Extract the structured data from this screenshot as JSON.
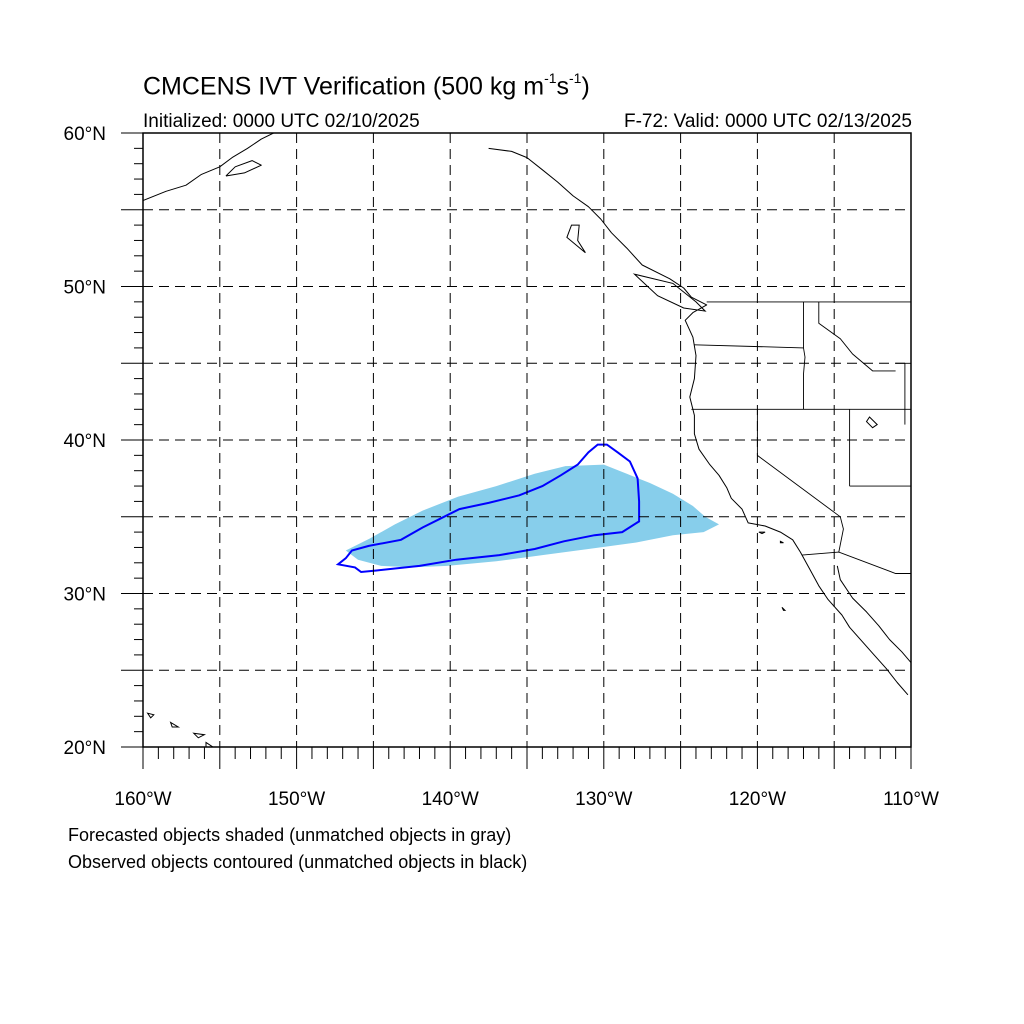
{
  "title": {
    "main": "CMCENS IVT Verification (500 kg m",
    "sup1": "-1",
    "mid": "s",
    "sup2": "-1",
    "close": ")"
  },
  "subtitle_left": "Initialized: 0000 UTC 02/10/2025",
  "subtitle_right": "F-72: Valid: 0000 UTC 02/13/2025",
  "notes": [
    "Forecasted objects shaded (unmatched objects in gray)",
    "Observed objects contoured (unmatched objects in black)"
  ],
  "colors": {
    "forecast_fill": "#87ceeb",
    "observed_contour": "#0000ff",
    "grid": "#000000",
    "coast": "#000000"
  },
  "map": {
    "lon_range": [
      -160,
      -110
    ],
    "lat_range": [
      20,
      60
    ],
    "grid_step_deg": 5,
    "lat_labels": [
      {
        "lat": 60,
        "text": "60°N"
      },
      {
        "lat": 50,
        "text": "50°N"
      },
      {
        "lat": 40,
        "text": "40°N"
      },
      {
        "lat": 30,
        "text": "30°N"
      },
      {
        "lat": 20,
        "text": "20°N"
      }
    ],
    "lon_labels": [
      {
        "lon": -160,
        "text": "160°W"
      },
      {
        "lon": -150,
        "text": "150°W"
      },
      {
        "lon": -140,
        "text": "140°W"
      },
      {
        "lon": -130,
        "text": "130°W"
      },
      {
        "lon": -120,
        "text": "120°W"
      },
      {
        "lon": -110,
        "text": "110°W"
      }
    ],
    "forecast_object": [
      [
        -146.8,
        32.8
      ],
      [
        -145.2,
        33.6
      ],
      [
        -143.6,
        34.5
      ],
      [
        -141.8,
        35.4
      ],
      [
        -139.5,
        36.3
      ],
      [
        -137.0,
        37.0
      ],
      [
        -134.5,
        37.8
      ],
      [
        -132.5,
        38.3
      ],
      [
        -130.0,
        38.4
      ],
      [
        -128.5,
        37.8
      ],
      [
        -127.0,
        37.2
      ],
      [
        -125.5,
        36.5
      ],
      [
        -124.2,
        35.7
      ],
      [
        -123.4,
        35.0
      ],
      [
        -122.5,
        34.5
      ],
      [
        -123.5,
        34.0
      ],
      [
        -125.5,
        33.8
      ],
      [
        -128.0,
        33.3
      ],
      [
        -131.0,
        32.9
      ],
      [
        -134.0,
        32.5
      ],
      [
        -137.0,
        32.1
      ],
      [
        -140.2,
        31.8
      ],
      [
        -142.5,
        31.7
      ],
      [
        -144.5,
        31.8
      ],
      [
        -146.0,
        32.2
      ]
    ],
    "observed_object": [
      [
        -147.3,
        31.9
      ],
      [
        -146.8,
        32.3
      ],
      [
        -146.4,
        32.8
      ],
      [
        -145.3,
        33.1
      ],
      [
        -143.2,
        33.5
      ],
      [
        -141.8,
        34.3
      ],
      [
        -140.6,
        34.9
      ],
      [
        -139.4,
        35.5
      ],
      [
        -137.5,
        35.9
      ],
      [
        -135.5,
        36.4
      ],
      [
        -134.0,
        37.0
      ],
      [
        -132.8,
        37.7
      ],
      [
        -131.7,
        38.4
      ],
      [
        -131.0,
        39.2
      ],
      [
        -130.4,
        39.7
      ],
      [
        -129.8,
        39.7
      ],
      [
        -129.1,
        39.2
      ],
      [
        -128.3,
        38.6
      ],
      [
        -127.8,
        37.5
      ],
      [
        -127.7,
        36.0
      ],
      [
        -127.7,
        34.7
      ],
      [
        -128.8,
        34.0
      ],
      [
        -130.6,
        33.8
      ],
      [
        -132.6,
        33.4
      ],
      [
        -134.5,
        32.9
      ],
      [
        -136.8,
        32.5
      ],
      [
        -139.6,
        32.2
      ],
      [
        -142.0,
        31.8
      ],
      [
        -144.8,
        31.5
      ],
      [
        -145.8,
        31.4
      ],
      [
        -146.2,
        31.7
      ]
    ],
    "coastline": [
      [
        -137.5,
        59.0
      ],
      [
        -136.0,
        58.8
      ],
      [
        -135.0,
        58.4
      ],
      [
        -134.0,
        57.6
      ],
      [
        -133.0,
        56.8
      ],
      [
        -132.0,
        55.9
      ],
      [
        -131.0,
        55.2
      ],
      [
        -130.2,
        54.4
      ],
      [
        -129.5,
        53.5
      ],
      [
        -128.5,
        52.5
      ],
      [
        -127.5,
        51.4
      ],
      [
        -125.7,
        50.5
      ],
      [
        -124.8,
        49.9
      ],
      [
        -124.3,
        49.3
      ],
      [
        -123.3,
        48.8
      ],
      [
        -124.2,
        48.3
      ],
      [
        -124.7,
        47.8
      ],
      [
        -124.2,
        46.7
      ],
      [
        -124.0,
        45.5
      ],
      [
        -124.1,
        44.0
      ],
      [
        -124.4,
        42.8
      ],
      [
        -124.1,
        41.6
      ],
      [
        -124.1,
        40.4
      ],
      [
        -123.8,
        39.4
      ],
      [
        -123.1,
        38.4
      ],
      [
        -122.5,
        37.7
      ],
      [
        -122.0,
        36.9
      ],
      [
        -121.7,
        36.2
      ],
      [
        -121.0,
        35.5
      ],
      [
        -120.6,
        34.6
      ],
      [
        -119.5,
        34.4
      ],
      [
        -118.5,
        34.0
      ],
      [
        -117.7,
        33.5
      ],
      [
        -117.2,
        32.7
      ],
      [
        -116.6,
        31.6
      ],
      [
        -116.0,
        30.5
      ],
      [
        -115.4,
        29.6
      ],
      [
        -114.5,
        28.6
      ],
      [
        -114.0,
        27.8
      ],
      [
        -113.2,
        26.9
      ],
      [
        -112.4,
        26.0
      ],
      [
        -111.6,
        25.1
      ],
      [
        -110.9,
        24.2
      ],
      [
        -110.2,
        23.4
      ]
    ],
    "gulf_coast": [
      [
        -114.8,
        31.8
      ],
      [
        -114.6,
        30.9
      ],
      [
        -113.8,
        29.7
      ],
      [
        -112.9,
        28.8
      ],
      [
        -112.1,
        27.9
      ],
      [
        -111.4,
        27.0
      ],
      [
        -110.6,
        26.2
      ],
      [
        -110.0,
        25.5
      ]
    ],
    "alaska_coast": [
      [
        -160.0,
        55.6
      ],
      [
        -158.5,
        56.2
      ],
      [
        -157.2,
        56.6
      ],
      [
        -156.2,
        57.3
      ],
      [
        -155.0,
        57.8
      ],
      [
        -154.2,
        58.4
      ],
      [
        -153.2,
        59.0
      ],
      [
        -152.3,
        59.6
      ],
      [
        -151.5,
        60.0
      ]
    ],
    "kodiak": [
      [
        -154.6,
        57.2
      ],
      [
        -153.4,
        57.4
      ],
      [
        -152.3,
        57.9
      ],
      [
        -152.9,
        58.2
      ],
      [
        -154.0,
        57.8
      ],
      [
        -154.6,
        57.2
      ]
    ],
    "borders": [
      [
        [
          -123.3,
          49.0
        ],
        [
          -110.0,
          49.0
        ]
      ],
      [
        [
          -124.3,
          42.0
        ],
        [
          -110.0,
          42.0
        ]
      ],
      [
        [
          -120.0,
          42.0
        ],
        [
          -120.0,
          39.0
        ],
        [
          -114.6,
          35.0
        ]
      ],
      [
        [
          -124.1,
          46.2
        ],
        [
          -117.0,
          46.0
        ],
        [
          -116.9,
          45.4
        ],
        [
          -117.0,
          44.3
        ],
        [
          -117.0,
          42.0
        ]
      ],
      [
        [
          -117.0,
          49.0
        ],
        [
          -117.0,
          46.0
        ]
      ],
      [
        [
          -114.0,
          42.0
        ],
        [
          -114.0,
          37.0
        ]
      ],
      [
        [
          -114.0,
          37.0
        ],
        [
          -110.0,
          37.0
        ]
      ],
      [
        [
          -117.1,
          32.5
        ],
        [
          -114.7,
          32.7
        ],
        [
          -111.0,
          31.3
        ],
        [
          -110.0,
          31.3
        ]
      ],
      [
        [
          -114.6,
          35.0
        ],
        [
          -114.4,
          34.2
        ],
        [
          -114.7,
          32.7
        ]
      ],
      [
        [
          -111.0,
          45.0
        ],
        [
          -110.0,
          45.0
        ]
      ],
      [
        [
          -110.4,
          45.0
        ],
        [
          -110.4,
          41.0
        ]
      ],
      [
        [
          -116.0,
          49.0
        ],
        [
          -116.0,
          47.6
        ],
        [
          -114.6,
          46.6
        ],
        [
          -113.8,
          45.6
        ],
        [
          -112.5,
          44.5
        ],
        [
          -111.0,
          44.5
        ]
      ]
    ],
    "islands": [
      [
        [
          -155.9,
          20.3
        ],
        [
          -155.0,
          19.7
        ],
        [
          -155.4,
          19.1
        ],
        [
          -155.9,
          19.6
        ],
        [
          -155.9,
          20.3
        ]
      ],
      [
        [
          -156.7,
          20.9
        ],
        [
          -156.0,
          20.8
        ],
        [
          -156.4,
          20.6
        ],
        [
          -156.7,
          20.9
        ]
      ],
      [
        [
          -158.2,
          21.6
        ],
        [
          -157.7,
          21.3
        ],
        [
          -158.1,
          21.3
        ],
        [
          -158.2,
          21.6
        ]
      ],
      [
        [
          -159.7,
          22.2
        ],
        [
          -159.3,
          22.1
        ],
        [
          -159.5,
          21.9
        ],
        [
          -159.7,
          22.2
        ]
      ],
      [
        [
          -118.5,
          33.4
        ],
        [
          -118.3,
          33.3
        ],
        [
          -118.5,
          33.3
        ],
        [
          -118.5,
          33.4
        ]
      ],
      [
        [
          -119.9,
          34.0
        ],
        [
          -119.5,
          34.0
        ],
        [
          -119.7,
          33.9
        ],
        [
          -119.9,
          34.0
        ]
      ],
      [
        [
          -118.4,
          29.1
        ],
        [
          -118.2,
          28.9
        ],
        [
          -118.3,
          28.9
        ],
        [
          -118.4,
          29.1
        ]
      ],
      [
        [
          -131.6,
          54.0
        ],
        [
          -131.7,
          53.0
        ],
        [
          -131.2,
          52.2
        ],
        [
          -132.4,
          53.2
        ],
        [
          -132.1,
          54.0
        ],
        [
          -131.6,
          54.0
        ]
      ],
      [
        [
          -128.0,
          50.8
        ],
        [
          -125.5,
          50.2
        ],
        [
          -124.0,
          49.0
        ],
        [
          -123.4,
          48.4
        ],
        [
          -124.8,
          48.6
        ],
        [
          -126.5,
          49.4
        ],
        [
          -128.0,
          50.8
        ]
      ],
      [
        [
          -112.7,
          41.5
        ],
        [
          -112.2,
          41.0
        ],
        [
          -112.5,
          40.8
        ],
        [
          -112.9,
          41.2
        ],
        [
          -112.7,
          41.5
        ]
      ]
    ]
  }
}
